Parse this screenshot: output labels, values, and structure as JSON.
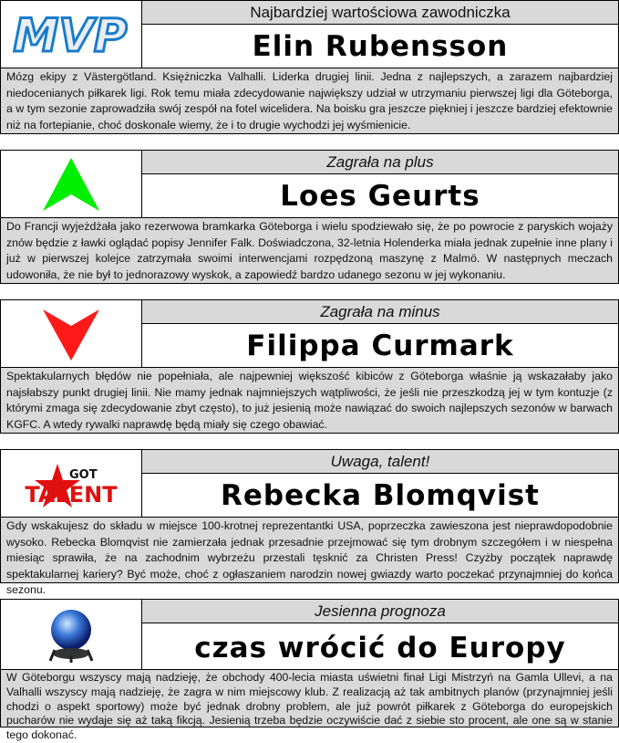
{
  "sections": [
    {
      "icon": "mvp-logo",
      "logo_text": "MVP",
      "heading": "Najbardziej wartościowa zawodniczka",
      "name": "Elin Rubensson",
      "text": "Mózg ekipy z Västergötland. Księżniczka Valhalli. Liderka drugiej linii. Jedna z najlepszych, a zarazem najbardziej niedocenianych piłkarek ligi. Rok temu miała zdecydowanie największy udział w utrzymaniu pierwszej ligi dla Göteborga, a w tym sezonie zaprowadziła swój zespół na fotel wicelidera. Na boisku gra jeszcze piękniej i jeszcze bardziej efektownie niż na fortepianie, choć doskonale wiemy, że i to drugie wychodzi jej wyśmienicie."
    },
    {
      "icon": "green-up-arrow",
      "heading": "Zagrała na plus",
      "name": "Loes Geurts",
      "text": "Do Francji wyjeżdżała jako rezerwowa bramkarka Göteborga i wielu spodziewało się, że po powrocie z paryskich wojaży znów będzie z ławki oglądać popisy Jennifer Falk. Doświadczona, 32-letnia Holenderka miała jednak zupełnie inne plany i już w pierwszej kolejce zatrzymała swoimi interwencjami rozpędzoną maszynę z Malmö. W następnych meczach udowoniła, że nie był to jednorazowy wyskok, a zapowiedź bardzo udanego sezonu w jej wykonaniu."
    },
    {
      "icon": "red-down-arrow",
      "heading": "Zagrała na minus",
      "name": "Filippa Curmark",
      "text": "Spektakularnych błędów nie popełniała, ale najpewniej większość kibiców z Göteborga właśnie ją wskazałaby jako najsłabszy punkt drugiej linii. Nie mamy jednak najmniejszych wątpliwości, że jeśli nie przeszkodzą jej w tym kontuzje (z którymi zmaga się zdecydowanie zbyt często), to już jesienią może nawiązać do swoich najlepszych sezonów w barwach KGFC. A wtedy rywalki naprawdę będą miały się czego obawiać."
    },
    {
      "icon": "got-talent-logo",
      "logo_text_top": "GOT",
      "logo_text_main": "TALENT",
      "heading": "Uwaga, talent!",
      "name": "Rebecka Blomqvist",
      "text": "Gdy wskakujesz do składu w miejsce 100-krotnej reprezentantki USA, poprzeczka zawieszona jest nieprawdopodobnie wysoko. Rebecka Blomqvist nie zamierzała jednak przesadnie przejmować się tym drobnym szczegółem i w niespełna miesiąc sprawiła, że na zachodnim wybrzeżu przestali tęsknić za Christen Press! Czyżby początek naprawdę spektakularnej kariery? Być może, choć z ogłaszaniem narodzin nowej gwiazdy warto poczekać przynajmniej do końca sezonu."
    },
    {
      "icon": "crystal-ball",
      "heading": "Jesienna prognoza",
      "name": "czas wrócić do Europy",
      "text": "W Göteborgu wszyscy mają nadzieję, że obchody 400-lecia miasta uświetni finał Ligi Mistrzyń na Gamla Ullevi, a na Valhalli wszyscy mają nadzieję, że zagra w nim miejscowy klub. Z realizacją aż tak ambitnych planów (przynajmniej jeśli chodzi o aspekt sportowy) może być jednak drobny problem, ale już powrót piłkarek z Göteborga do europejskich pucharów nie wydaje się aż taką fikcją. Jesienią trzeba będzie oczywiście dać z siebie sto procent, ale one są w stanie tego dokonać."
    }
  ]
}
